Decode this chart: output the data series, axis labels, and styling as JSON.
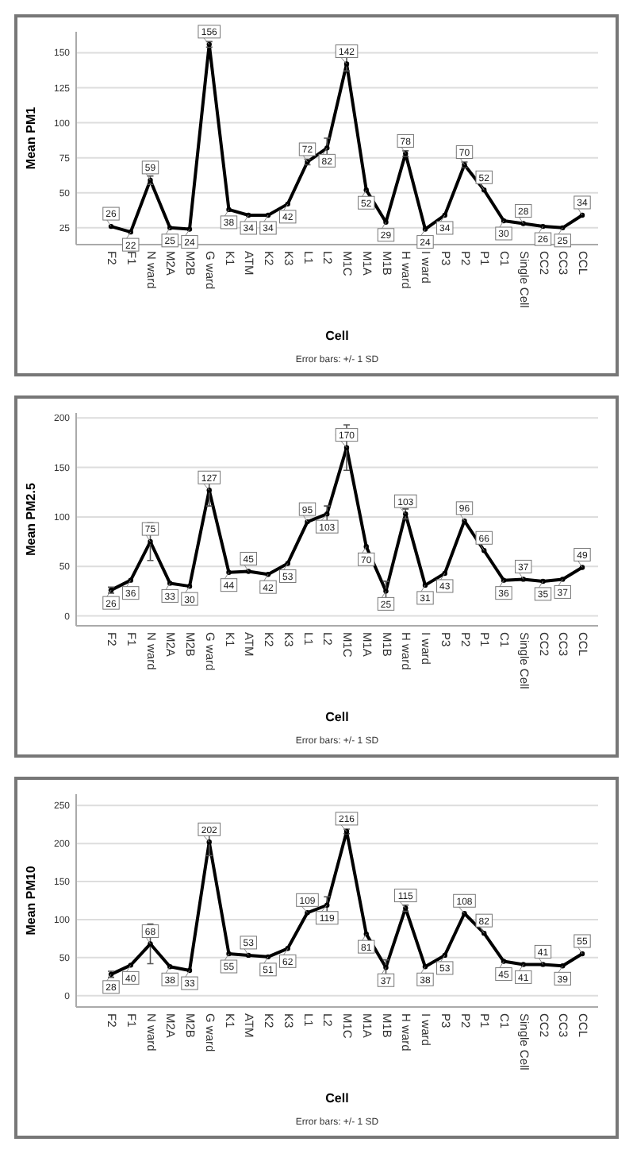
{
  "chart_data": [
    {
      "type": "line",
      "ylabel": "Mean PM1",
      "xlabel": "Cell",
      "annotations": [
        "Error bars: +/- 1 SD"
      ],
      "categories": [
        "F2",
        "F1",
        "N ward",
        "M2A",
        "M2B",
        "G ward",
        "K1",
        "ATM",
        "K2",
        "K3",
        "L1",
        "L2",
        "M1C",
        "M1A",
        "M1B",
        "H ward",
        "I ward",
        "P3",
        "P2",
        "P1",
        "C1",
        "Single Cell",
        "CC2",
        "CC3",
        "CCL"
      ],
      "series": [
        {
          "color": "#000000",
          "values": [
            26,
            22,
            59,
            25,
            24,
            156,
            38,
            34,
            34,
            42,
            72,
            82,
            142,
            52,
            29,
            78,
            24,
            34,
            70,
            52,
            30,
            28,
            26,
            25,
            34
          ],
          "errors": [
            null,
            null,
            3,
            null,
            null,
            2,
            null,
            null,
            null,
            null,
            2,
            7,
            5,
            null,
            null,
            2,
            null,
            null,
            2,
            null,
            null,
            null,
            null,
            null,
            null
          ]
        }
      ],
      "ylim": [
        13,
        165
      ],
      "yticks": [
        25,
        50,
        75,
        100,
        125,
        150
      ],
      "grid": "y",
      "data_labels": true,
      "marker": "circle"
    },
    {
      "type": "line",
      "ylabel": "Mean PM2.5",
      "xlabel": "Cell",
      "annotations": [
        "Error bars: +/- 1 SD"
      ],
      "categories": [
        "F2",
        "F1",
        "N ward",
        "M2A",
        "M2B",
        "G ward",
        "K1",
        "ATM",
        "K2",
        "K3",
        "L1",
        "L2",
        "M1C",
        "M1A",
        "M1B",
        "H ward",
        "I ward",
        "P3",
        "P2",
        "P1",
        "C1",
        "Single Cell",
        "CC2",
        "CC3",
        "CCL"
      ],
      "series": [
        {
          "color": "#000000",
          "values": [
            26,
            36,
            75,
            33,
            30,
            127,
            44,
            45,
            42,
            53,
            95,
            103,
            170,
            70,
            25,
            103,
            31,
            43,
            96,
            66,
            36,
            37,
            35,
            37,
            49
          ],
          "errors": [
            3,
            null,
            19,
            null,
            null,
            16,
            null,
            null,
            null,
            null,
            null,
            8,
            23,
            null,
            10,
            5,
            null,
            null,
            null,
            null,
            null,
            null,
            null,
            null,
            null
          ]
        }
      ],
      "ylim": [
        -10,
        205
      ],
      "yticks": [
        0,
        50,
        100,
        150,
        200
      ],
      "grid": "y",
      "data_labels": true,
      "marker": "circle"
    },
    {
      "type": "line",
      "ylabel": "Mean PM10",
      "xlabel": "Cell",
      "annotations": [
        "Error bars: +/- 1 SD"
      ],
      "categories": [
        "F2",
        "F1",
        "N ward",
        "M2A",
        "M2B",
        "G ward",
        "K1",
        "ATM",
        "K2",
        "K3",
        "L1",
        "L2",
        "M1C",
        "M1A",
        "M1B",
        "H ward",
        "I ward",
        "P3",
        "P2",
        "P1",
        "C1",
        "Single Cell",
        "CC2",
        "CC3",
        "CCL"
      ],
      "series": [
        {
          "color": "#000000",
          "values": [
            28,
            40,
            68,
            38,
            33,
            202,
            55,
            53,
            51,
            62,
            109,
            119,
            216,
            81,
            37,
            115,
            38,
            53,
            108,
            82,
            45,
            41,
            41,
            39,
            55
          ],
          "errors": [
            4,
            null,
            26,
            null,
            null,
            18,
            null,
            null,
            null,
            null,
            null,
            11,
            3,
            null,
            10,
            4,
            null,
            null,
            null,
            null,
            null,
            null,
            null,
            null,
            null
          ]
        }
      ],
      "ylim": [
        -15,
        265
      ],
      "yticks": [
        0,
        50,
        100,
        150,
        200,
        250
      ],
      "grid": "y",
      "data_labels": true,
      "marker": "circle"
    }
  ]
}
